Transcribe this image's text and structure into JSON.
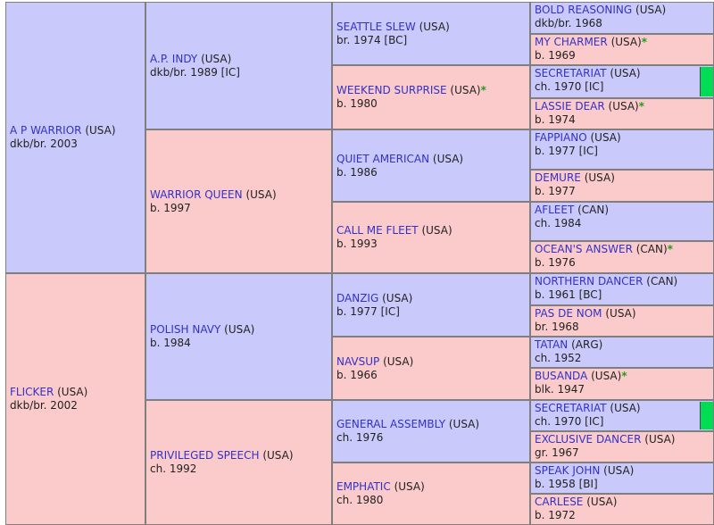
{
  "pedigree": {
    "subject": {
      "name": "A P WARRIOR",
      "country": "(USA)",
      "details": "dkb/br. 2003"
    },
    "gen1": [
      {
        "name": "A P WARRIOR",
        "country": "(USA)",
        "details": "dkb/br. 2003"
      },
      {
        "name": "FLICKER",
        "country": "(USA)",
        "details": "dkb/br. 2002"
      }
    ],
    "gen2": [
      {
        "name": "A.P. INDY",
        "country": "(USA)",
        "details": "dkb/br. 1989 [IC]"
      },
      {
        "name": "WARRIOR QUEEN",
        "country": "(USA)",
        "details": "b. 1997"
      },
      {
        "name": "POLISH NAVY",
        "country": "(USA)",
        "details": "b. 1984"
      },
      {
        "name": "PRIVILEGED SPEECH",
        "country": "(USA)",
        "details": "ch. 1992"
      }
    ],
    "gen3": [
      {
        "name": "SEATTLE SLEW",
        "country": "(USA)",
        "details": "br. 1974 [BC]"
      },
      {
        "name": "WEEKEND SURPRISE",
        "country": "(USA)",
        "star": "*",
        "details": "b. 1980"
      },
      {
        "name": "QUIET AMERICAN",
        "country": "(USA)",
        "details": "b. 1986"
      },
      {
        "name": "CALL ME FLEET",
        "country": "(USA)",
        "details": "b. 1993"
      },
      {
        "name": "DANZIG",
        "country": "(USA)",
        "details": "b. 1977 [IC]"
      },
      {
        "name": "NAVSUP",
        "country": "(USA)",
        "details": "b. 1966"
      },
      {
        "name": "GENERAL ASSEMBLY",
        "country": "(USA)",
        "details": "ch. 1976"
      },
      {
        "name": "EMPHATIC",
        "country": "(USA)",
        "details": "ch. 1980"
      }
    ],
    "gen4": [
      {
        "name": "BOLD REASONING",
        "country": "(USA)",
        "details": "dkb/br. 1968"
      },
      {
        "name": "MY CHARMER",
        "country": "(USA)",
        "star": "*",
        "details": "b. 1969"
      },
      {
        "name": "SECRETARIAT",
        "country": "(USA)",
        "details": "ch. 1970 [IC]"
      },
      {
        "name": "LASSIE DEAR",
        "country": "(USA)",
        "star": "*",
        "details": "b. 1974"
      },
      {
        "name": "FAPPIANO",
        "country": "(USA)",
        "details": "b. 1977 [IC]"
      },
      {
        "name": "DEMURE",
        "country": "(USA)",
        "details": "b. 1977"
      },
      {
        "name": "AFLEET",
        "country": "(CAN)",
        "details": "ch. 1984"
      },
      {
        "name": "OCEAN'S ANSWER",
        "country": "(CAN)",
        "star": "*",
        "details": "b. 1976"
      },
      {
        "name": "NORTHERN DANCER",
        "country": "(CAN)",
        "details": "b. 1961 [BC]"
      },
      {
        "name": "PAS DE NOM",
        "country": "(USA)",
        "details": "br. 1968"
      },
      {
        "name": "TATAN",
        "country": "(ARG)",
        "details": "ch. 1952"
      },
      {
        "name": "BUSANDA",
        "country": "(USA)",
        "star": "*",
        "details": "blk. 1947"
      },
      {
        "name": "SECRETARIAT",
        "country": "(USA)",
        "details": "ch. 1970 [IC]"
      },
      {
        "name": "EXCLUSIVE DANCER",
        "country": "(USA)",
        "details": "gr. 1967"
      },
      {
        "name": "SPEAK JOHN",
        "country": "(USA)",
        "details": "b. 1958 [BI]"
      },
      {
        "name": "CARLESE",
        "country": "(USA)",
        "details": "b. 1972"
      }
    ]
  },
  "colors": {
    "male_bg": "#c9c9fb",
    "female_bg": "#fbcaca",
    "link": "#3232c8",
    "star": "#1e9e1e",
    "marker": "#00dd55"
  },
  "icons": {
    "marker": "green-inbreeding-marker"
  }
}
